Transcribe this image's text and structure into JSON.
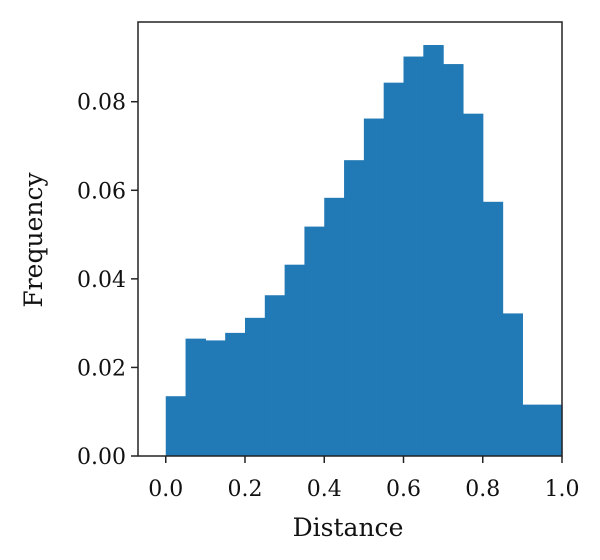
{
  "chart_data": {
    "type": "bar",
    "subtype": "histogram",
    "title": "",
    "xlabel": "Distance",
    "ylabel": "Frequency",
    "xlim": [
      -0.07,
      1.0
    ],
    "ylim": [
      0.0,
      0.098
    ],
    "xticks": [
      "0.0",
      "0.2",
      "0.4",
      "0.6",
      "0.8",
      "1.0"
    ],
    "yticks": [
      "0.00",
      "0.02",
      "0.04",
      "0.06",
      "0.08"
    ],
    "grid": false,
    "legend": "none",
    "bar_color": "#2179b5",
    "bin_edges": [
      0.0,
      0.05,
      0.1,
      0.15,
      0.2,
      0.25,
      0.3,
      0.35,
      0.4,
      0.45,
      0.5,
      0.55,
      0.6,
      0.65,
      0.7,
      0.75,
      0.8,
      0.85,
      0.9,
      0.95,
      1.0
    ],
    "values": [
      0.0135,
      0.0265,
      0.0261,
      0.0278,
      0.0312,
      0.0363,
      0.0432,
      0.0518,
      0.0583,
      0.0668,
      0.0762,
      0.0843,
      0.0902,
      0.0928,
      0.0885,
      0.0773,
      0.0574,
      0.0322,
      0.0116,
      0.0116
    ]
  }
}
